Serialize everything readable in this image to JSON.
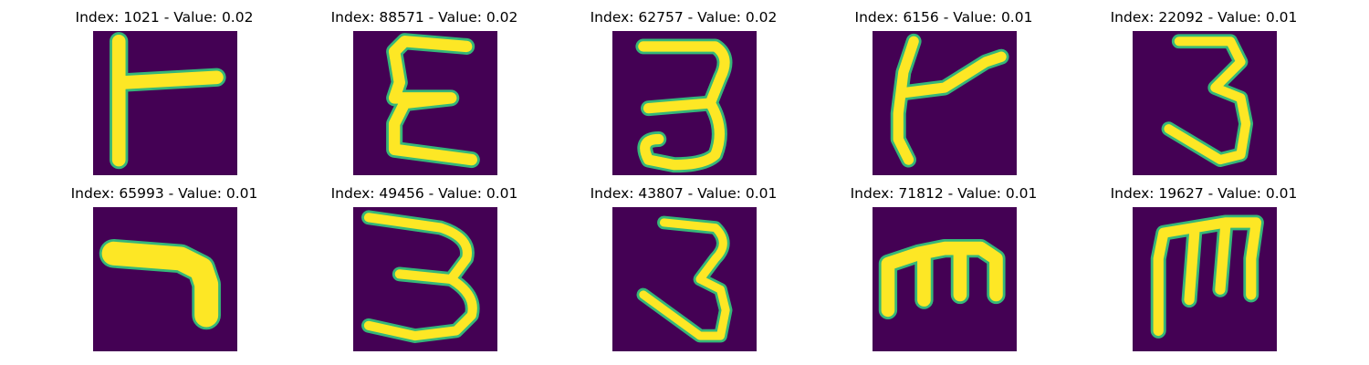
{
  "colors": {
    "background": "#440154",
    "foreground": "#fde725",
    "edge": "#35b779"
  },
  "panels": [
    {
      "title": "Index: 1021 - Value: 0.02",
      "glyph": "letter-shaped-glyph-like-capital-k"
    },
    {
      "title": "Index: 88571 - Value: 0.02",
      "glyph": "epsilon-like-glyph"
    },
    {
      "title": "Index: 62757 - Value: 0.02",
      "glyph": "digit-3"
    },
    {
      "title": "Index: 6156 - Value: 0.01",
      "glyph": "letter-shaped-glyph-like-capital-k"
    },
    {
      "title": "Index: 22092 - Value: 0.01",
      "glyph": "digit-3"
    },
    {
      "title": "Index: 65993 - Value: 0.01",
      "glyph": "digit-7-like-stroke"
    },
    {
      "title": "Index: 49456 - Value: 0.01",
      "glyph": "digit-3"
    },
    {
      "title": "Index: 43807 - Value: 0.01",
      "glyph": "digit-3"
    },
    {
      "title": "Index: 71812 - Value: 0.01",
      "glyph": "letter-m"
    },
    {
      "title": "Index: 19627 - Value: 0.01",
      "glyph": "letter-m-tall"
    }
  ]
}
